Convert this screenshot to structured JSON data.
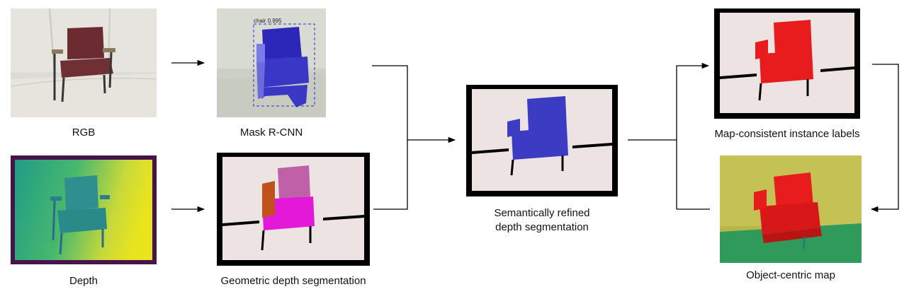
{
  "panels": {
    "rgb": {
      "caption": "RGB"
    },
    "mask_rcnn": {
      "caption": "Mask R-CNN",
      "detection_label": "chair 0.995"
    },
    "depth": {
      "caption": "Depth"
    },
    "geometric": {
      "caption": "Geometric depth segmentation"
    },
    "refined": {
      "caption_line1": "Semantically refined",
      "caption_line2": "depth segmentation"
    },
    "instance": {
      "caption": "Map-consistent instance labels"
    },
    "map": {
      "caption": "Object-centric map"
    }
  },
  "colors": {
    "mask_blue": "#3a36c6",
    "refined_blue": "#3b3bc4",
    "instance_red": "#e81c1c",
    "segment_pink": "#c060a8",
    "segment_magenta": "#e418d8",
    "segment_orange": "#c0501c",
    "background_segment": "#ede3e3",
    "depth_frame": "#46134a"
  }
}
